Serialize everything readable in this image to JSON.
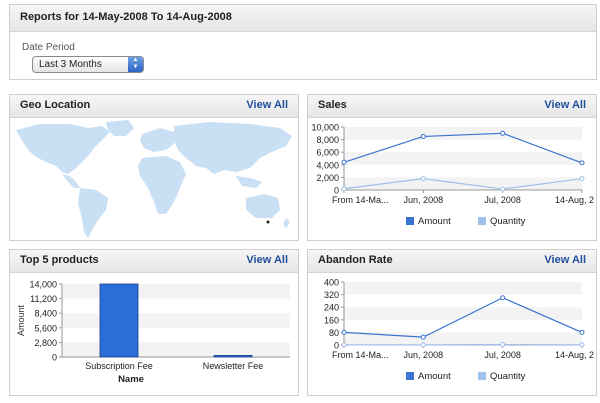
{
  "header": {
    "title": "Reports for 14-May-2008 To 14-Aug-2008"
  },
  "date_period": {
    "label": "Date Period",
    "selected": "Last 3 Months"
  },
  "view_all_label": "View All",
  "geo": {
    "title": "Geo Location"
  },
  "sales": {
    "title": "Sales"
  },
  "top5": {
    "title": "Top 5 products"
  },
  "abandon": {
    "title": "Abandon Rate"
  },
  "colors": {
    "amount": "#3a74d0",
    "quantity": "#9ec0ea",
    "bar": "#2a6fd6",
    "map": "#c9dff4"
  },
  "chart_data": [
    {
      "id": "sales",
      "type": "line",
      "categories": [
        "From 14-Ma...",
        "Jun, 2008",
        "Jul, 2008",
        "14-Aug, 2"
      ],
      "yticks": [
        "10,000",
        "8,000",
        "6,000",
        "4,000",
        "2,000",
        "0"
      ],
      "ylim": [
        0,
        10000
      ],
      "series": [
        {
          "name": "Amount",
          "values": [
            4400,
            8500,
            9000,
            4300
          ]
        },
        {
          "name": "Quantity",
          "values": [
            200,
            1800,
            150,
            1800
          ]
        }
      ],
      "legend": "bottom"
    },
    {
      "id": "top5",
      "type": "bar",
      "categories": [
        "Subscription Fee",
        "Newsletter Fee"
      ],
      "values": [
        14000,
        300
      ],
      "yticks": [
        "14,000",
        "11,200",
        "8,400",
        "5,600",
        "2,800",
        "0"
      ],
      "ylim": [
        0,
        14000
      ],
      "xlabel": "Name",
      "ylabel": "Amount"
    },
    {
      "id": "abandon",
      "type": "line",
      "categories": [
        "From 14-Ma...",
        "Jun, 2008",
        "Jul, 2008",
        "14-Aug, 2"
      ],
      "yticks": [
        "400",
        "320",
        "240",
        "160",
        "80",
        "0"
      ],
      "ylim": [
        0,
        400
      ],
      "series": [
        {
          "name": "Amount",
          "values": [
            80,
            50,
            300,
            80
          ]
        },
        {
          "name": "Quantity",
          "values": [
            1,
            1,
            3,
            1
          ]
        }
      ],
      "legend": "bottom"
    }
  ]
}
